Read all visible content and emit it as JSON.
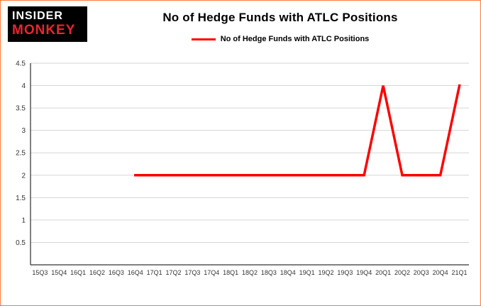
{
  "logo": {
    "line1": "INSIDER",
    "line2": "MONKEY"
  },
  "colors": {
    "line": "#ff0000",
    "grid": "#d6d6d6",
    "axis": "#000000",
    "tick_text": "#333333",
    "border": "#ff7a3c",
    "logo_bg": "#000000",
    "logo_monkey": "#e8262d"
  },
  "chart_data": {
    "type": "line",
    "title": "No of Hedge Funds with ATLC Positions",
    "legend": "No of Hedge Funds with ATLC Positions",
    "xlabel": "",
    "ylabel": "",
    "categories": [
      "15Q3",
      "15Q4",
      "16Q1",
      "16Q2",
      "16Q3",
      "16Q4",
      "17Q1",
      "17Q2",
      "17Q3",
      "17Q4",
      "18Q1",
      "18Q2",
      "18Q3",
      "18Q4",
      "19Q1",
      "19Q2",
      "19Q3",
      "19Q4",
      "20Q1",
      "20Q2",
      "20Q3",
      "20Q4",
      "21Q1"
    ],
    "values": [
      null,
      null,
      null,
      null,
      null,
      2,
      2,
      2,
      2,
      2,
      2,
      2,
      2,
      2,
      2,
      2,
      2,
      2,
      4,
      2,
      2,
      2,
      4
    ],
    "ylim": [
      0,
      4.5
    ],
    "yticks": [
      0.5,
      1,
      1.5,
      2,
      2.5,
      3,
      3.5,
      4,
      4.5
    ],
    "grid": true,
    "legend_position": "top-center"
  }
}
